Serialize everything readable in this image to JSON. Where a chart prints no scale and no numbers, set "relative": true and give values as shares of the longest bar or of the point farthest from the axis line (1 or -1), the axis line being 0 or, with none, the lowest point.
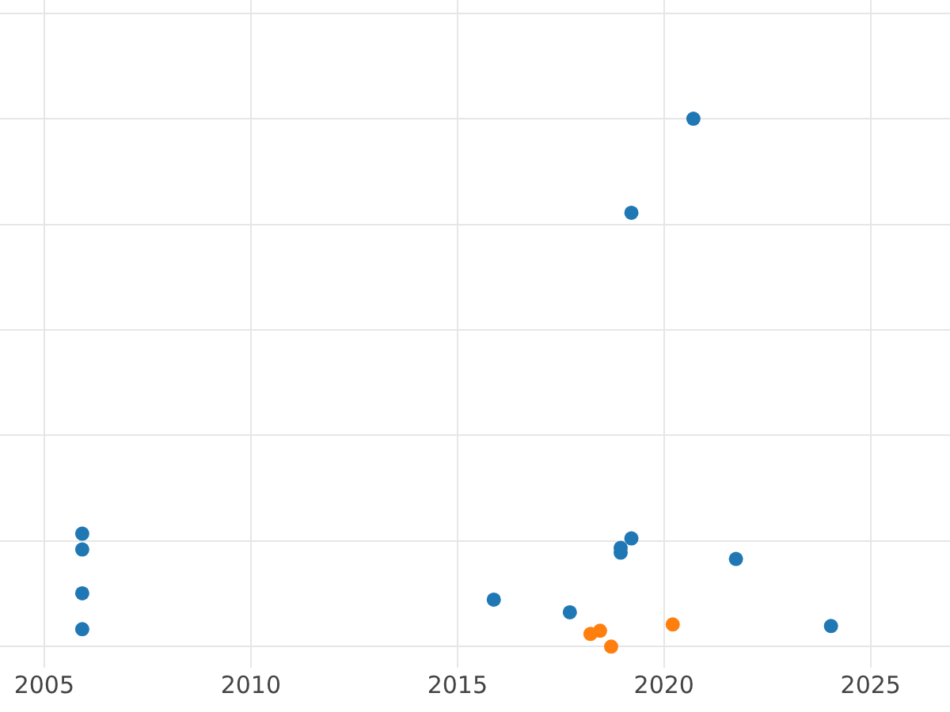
{
  "chart_data": {
    "type": "scatter",
    "relative": true,
    "grid": true,
    "marker": "circle",
    "xlim": [
      2003.93,
      2026.92
    ],
    "xticks": [
      2005,
      2010,
      2015,
      2020,
      2025
    ],
    "series": [
      {
        "color": "#1f77b4",
        "x": [
          2005.92,
          2005.92,
          2005.92,
          2005.92,
          2015.88,
          2017.72,
          2018.95,
          2018.95,
          2019.21,
          2019.21,
          2020.71,
          2021.74,
          2024.04
        ],
        "values": [
          0.214,
          0.184,
          0.101,
          0.033,
          0.089,
          0.065,
          0.187,
          0.178,
          0.205,
          0.822,
          1.0,
          0.166,
          0.039
        ]
      },
      {
        "color": "#ff7f0e",
        "x": [
          2018.22,
          2018.45,
          2018.72,
          2020.21
        ],
        "values": [
          0.024,
          0.03,
          0,
          0.042
        ]
      }
    ]
  }
}
